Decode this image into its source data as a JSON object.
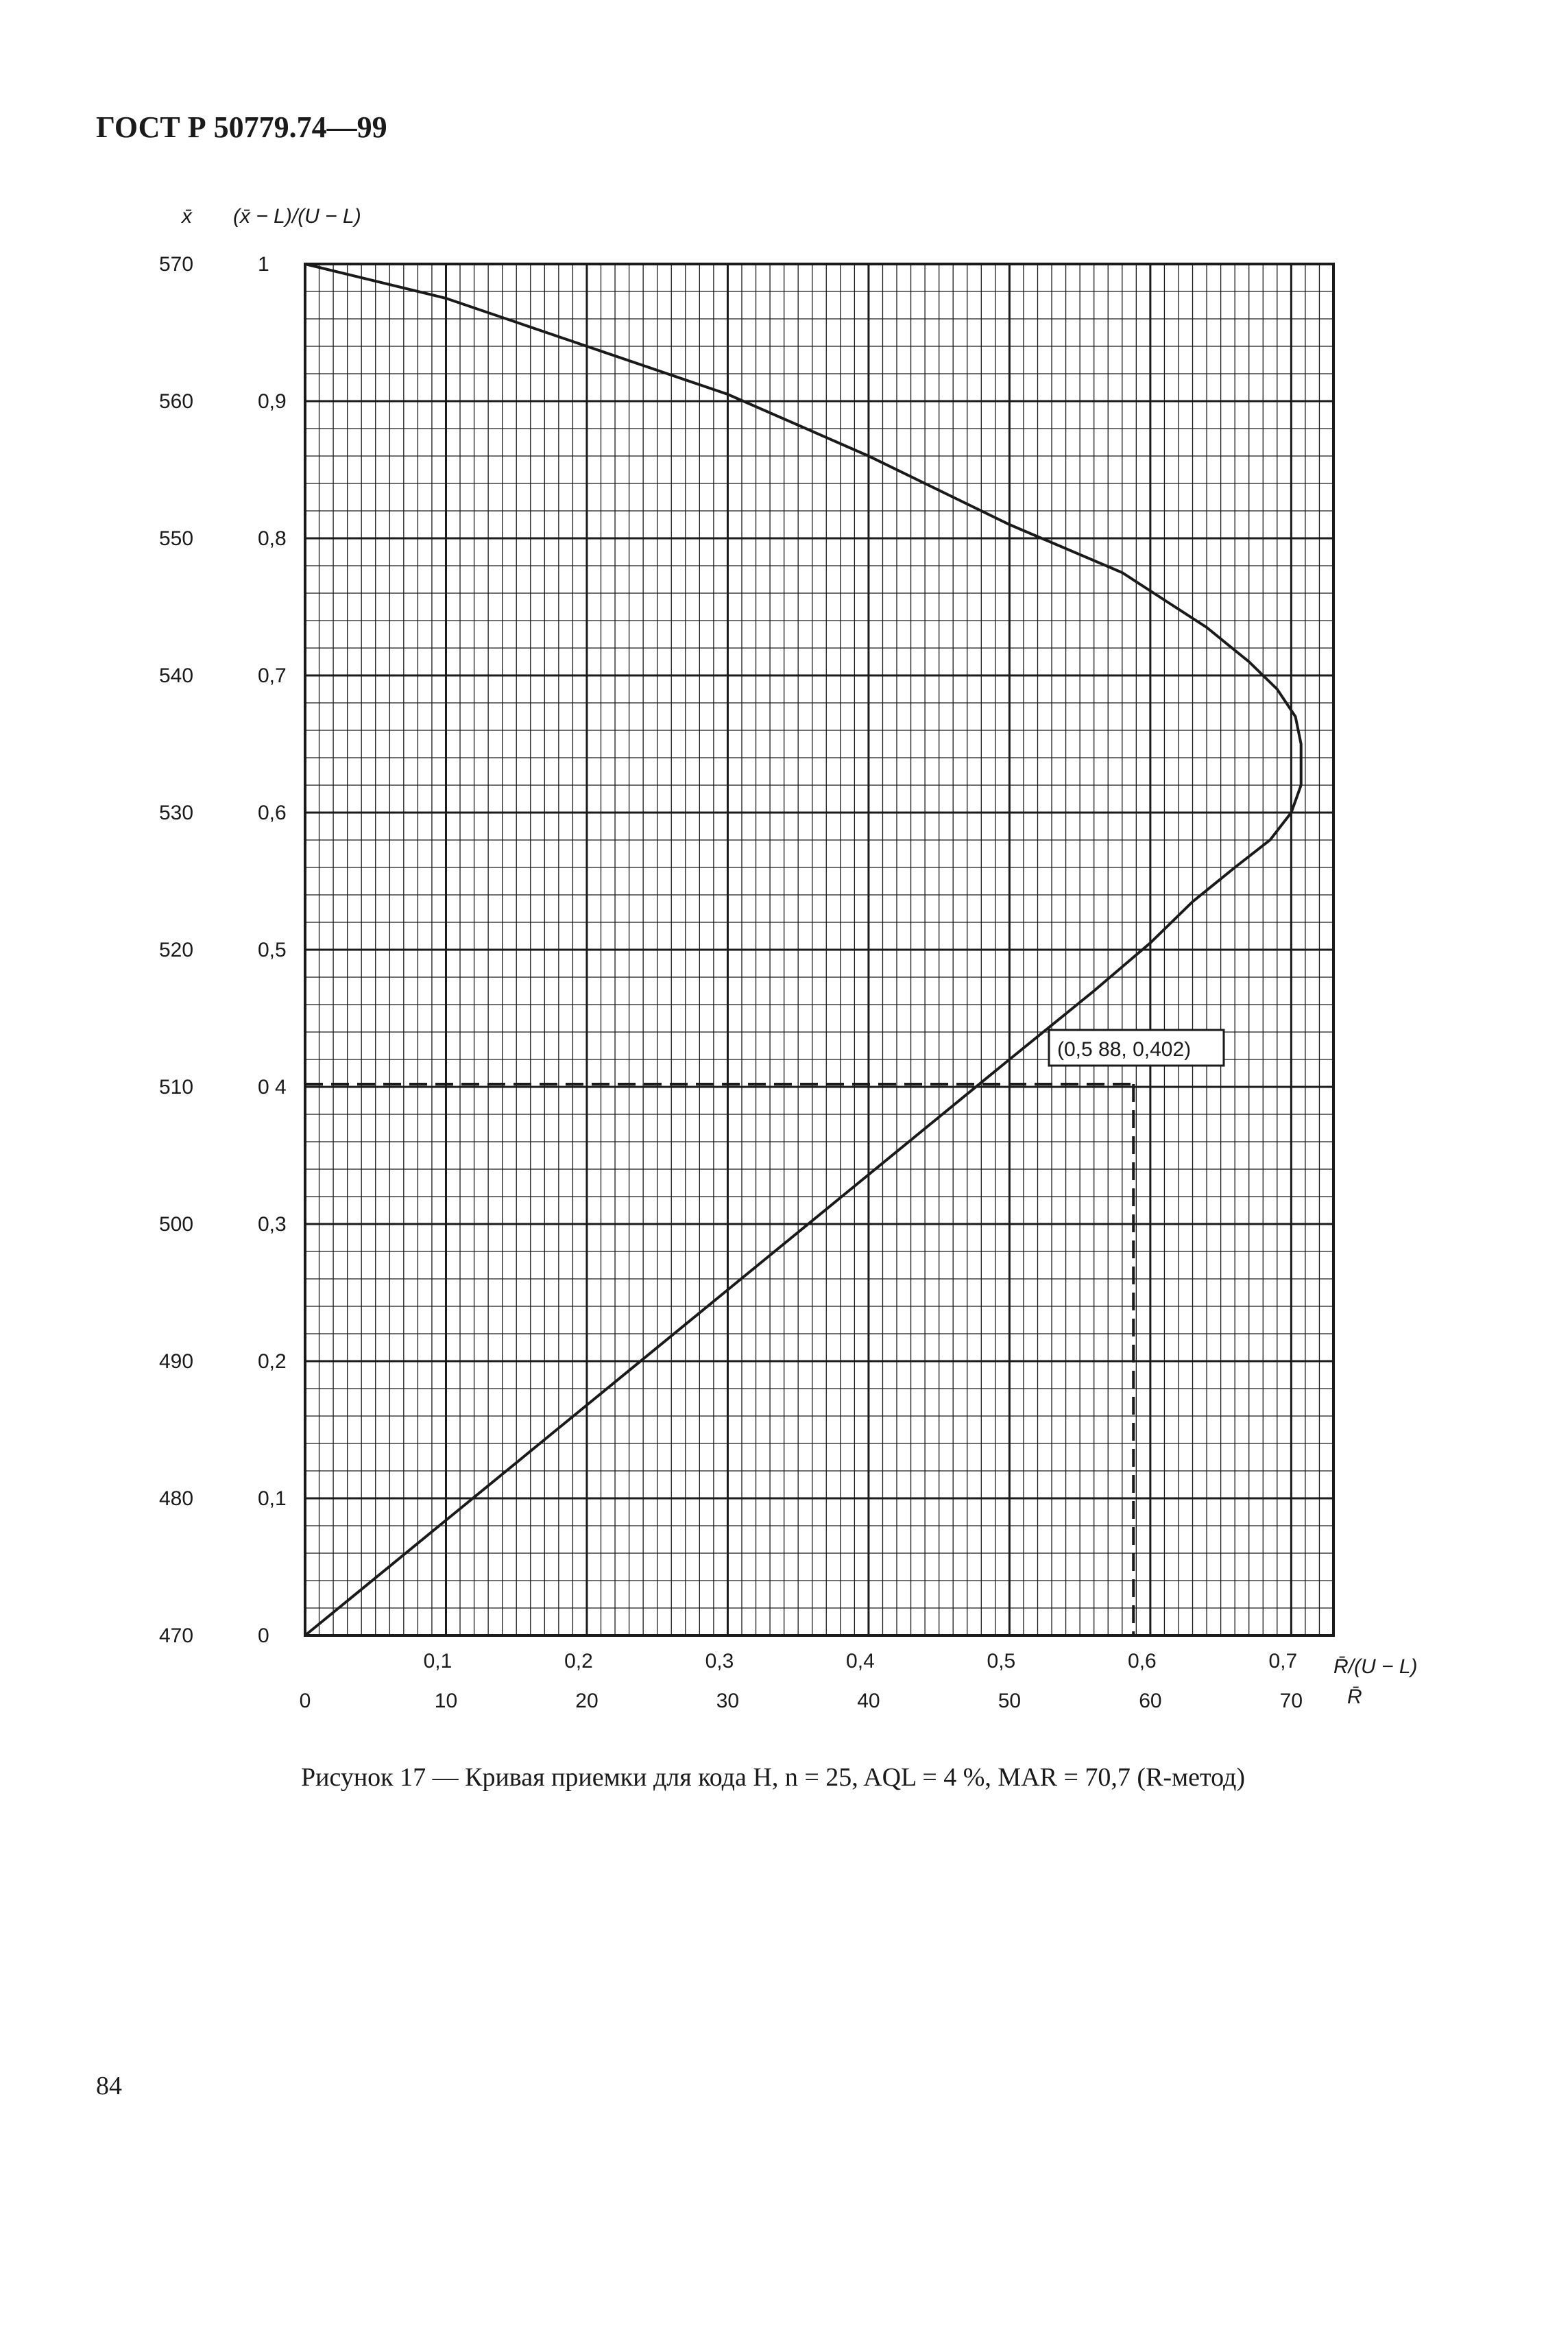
{
  "document": {
    "header": "ГОСТ Р 50779.74—99",
    "caption": "Рисунок 17 — Кривая приемки для кода H, n = 25, AQL = 4 %, MAR = 70,7  (R-метод)",
    "page_number": "84"
  },
  "chart_data": {
    "type": "line",
    "left_axis_label": "x̄",
    "left_axis_label2": "(x̄ − L)/(U − L)",
    "bottom_axis_label": "R̄/(U − L)",
    "bottom_axis_label2": "R̄",
    "left_ticks_outer": [
      "570",
      "560",
      "550",
      "540",
      "530",
      "520",
      "510",
      "500",
      "490",
      "480",
      "470"
    ],
    "left_ticks_inner": [
      "1",
      "0,9",
      "0,8",
      "0,7",
      "0,6",
      "0,5",
      "0 4",
      "0,3",
      "0,2",
      "0,1",
      "0"
    ],
    "bottom_ticks_top": [
      "0,1",
      "0,2",
      "0,3",
      "0,4",
      "0,5",
      "0,6",
      "0,7"
    ],
    "bottom_ticks_bottom": [
      "0",
      "10",
      "20",
      "30",
      "40",
      "50",
      "60",
      "70"
    ],
    "xlim": [
      0,
      0.73
    ],
    "ylim": [
      0,
      1
    ],
    "grid": true,
    "annotation": {
      "label": "(0,5 88, 0,402)",
      "x": 0.588,
      "y": 0.402
    },
    "series": [
      {
        "x": [
          0,
          0.1,
          0.2,
          0.3,
          0.4,
          0.5,
          0.56,
          0.6,
          0.63,
          0.66,
          0.685,
          0.7,
          0.707,
          0.707,
          0.703,
          0.69,
          0.67,
          0.64,
          0.61,
          0.58,
          0.5,
          0.4,
          0.3,
          0.2,
          0.1,
          0
        ],
        "y": [
          0,
          0.084,
          0.168,
          0.252,
          0.336,
          0.42,
          0.47,
          0.505,
          0.535,
          0.56,
          0.58,
          0.6,
          0.62,
          0.65,
          0.67,
          0.69,
          0.71,
          0.735,
          0.755,
          0.775,
          0.81,
          0.86,
          0.905,
          0.94,
          0.975,
          1
        ]
      }
    ]
  }
}
